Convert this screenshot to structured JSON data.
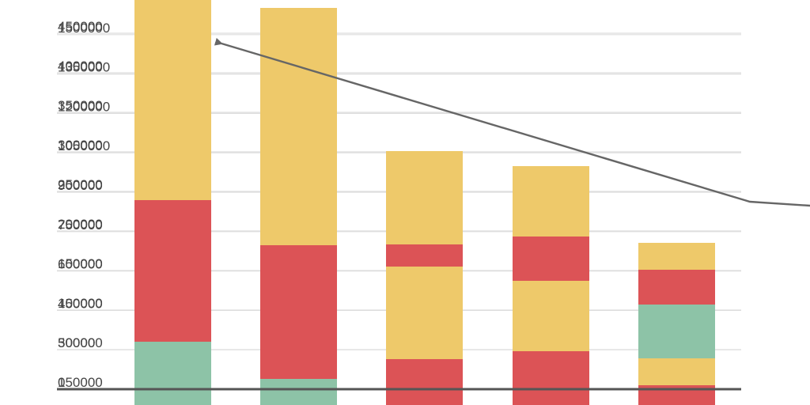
{
  "chart_data": {
    "type": "bar",
    "stacked": true,
    "grid": true,
    "colors": {
      "green": "#8dc3a7",
      "red": "#dc5356",
      "yellow": "#eec96a",
      "gridline": "#dddddd",
      "baseline": "#555555",
      "arrow": "#666666",
      "tick_text": "#444444"
    },
    "y_axes": [
      {
        "ticks": [
          "0",
          "50000",
          "100000",
          "150000",
          "200000",
          "250000",
          "300000",
          "350000",
          "400000",
          "450000"
        ],
        "ylim": [
          0,
          460000
        ]
      },
      {
        "ticks": [
          "150000",
          "300000",
          "450000",
          "600000",
          "750000",
          "900000",
          "1050000",
          "1200000",
          "1350000",
          "1500000"
        ],
        "ylim": [
          150000,
          1535000
        ]
      }
    ],
    "bars": [
      {
        "segments": [
          {
            "color": "green",
            "value": 60000
          },
          {
            "color": "red",
            "value": 179000
          },
          {
            "color": "yellow",
            "value": 450000
          }
        ]
      },
      {
        "segments": [
          {
            "color": "green",
            "value": 13000
          },
          {
            "color": "red",
            "value": 169000
          },
          {
            "color": "yellow",
            "value": 300000
          }
        ]
      },
      {
        "segments": [
          {
            "color": "red",
            "value": 38000
          },
          {
            "color": "yellow",
            "value": 117000
          },
          {
            "color": "red",
            "value": 28000
          },
          {
            "color": "yellow",
            "value": 118000
          }
        ]
      },
      {
        "segments": [
          {
            "color": "red",
            "value": 48000
          },
          {
            "color": "yellow",
            "value": 89000
          },
          {
            "color": "red",
            "value": 56000
          },
          {
            "color": "yellow",
            "value": 89000
          }
        ]
      },
      {
        "segments": [
          {
            "color": "red",
            "value": 5000
          },
          {
            "color": "yellow",
            "value": 34000
          },
          {
            "color": "green",
            "value": 68000
          },
          {
            "color": "red",
            "value": 44000
          },
          {
            "color": "yellow",
            "value": 34000
          }
        ]
      }
    ],
    "annotation": {
      "type": "arrow",
      "label": ""
    }
  }
}
